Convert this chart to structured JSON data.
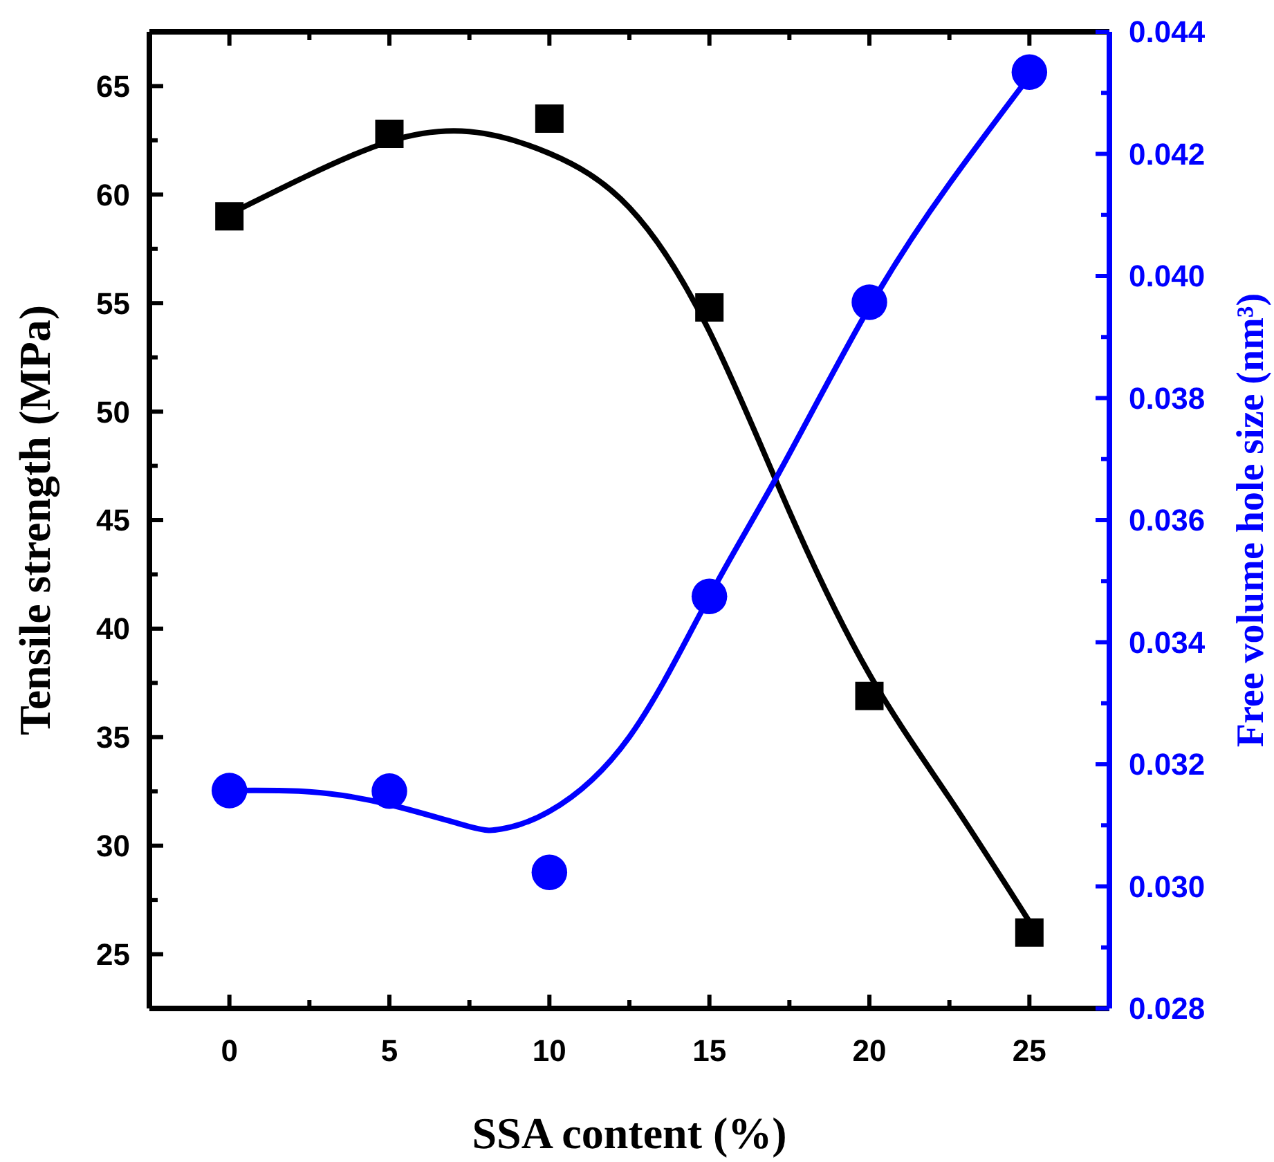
{
  "chart_data": {
    "type": "scatter",
    "xlabel": "SSA content (%)",
    "ylabel": "Tensile strength (MPa)",
    "y2label": "Free volume hole size (nm³)",
    "xlim": [
      -2.5,
      27.5
    ],
    "ylim": [
      22.5,
      67.5
    ],
    "y2lim": [
      0.028,
      0.044
    ],
    "xticks": [
      0,
      {
        "value": 2.5,
        "label": null
      },
      5,
      {
        "value": 7.5,
        "label": null
      },
      10,
      {
        "value": 12.5,
        "label": null
      },
      15,
      {
        "value": 17.5,
        "label": null
      },
      20,
      {
        "value": 22.5,
        "label": null
      },
      25
    ],
    "yticks": [
      25,
      {
        "value": 27.5,
        "label": null
      },
      30,
      {
        "value": 32.5,
        "label": null
      },
      35,
      {
        "value": 37.5,
        "label": null
      },
      40,
      {
        "value": 42.5,
        "label": null
      },
      45,
      {
        "value": 47.5,
        "label": null
      },
      50,
      {
        "value": 52.5,
        "label": null
      },
      55,
      {
        "value": 57.5,
        "label": null
      },
      60,
      {
        "value": 62.5,
        "label": null
      },
      65
    ],
    "y2ticks": [
      {
        "value": 0.028,
        "label": "0.028"
      },
      {
        "value": 0.029,
        "label": null
      },
      {
        "value": 0.03,
        "label": "0.030"
      },
      {
        "value": 0.031,
        "label": null
      },
      {
        "value": 0.032,
        "label": "0.032"
      },
      {
        "value": 0.033,
        "label": null
      },
      {
        "value": 0.034,
        "label": "0.034"
      },
      {
        "value": 0.035,
        "label": null
      },
      {
        "value": 0.036,
        "label": "0.036"
      },
      {
        "value": 0.037,
        "label": null
      },
      {
        "value": 0.038,
        "label": "0.038"
      },
      {
        "value": 0.039,
        "label": null
      },
      {
        "value": 0.04,
        "label": "0.040"
      },
      {
        "value": 0.041,
        "label": null
      },
      {
        "value": 0.042,
        "label": "0.042"
      },
      {
        "value": 0.043,
        "label": null
      },
      {
        "value": 0.044,
        "label": "0.044"
      }
    ],
    "grid": false,
    "series": [
      {
        "type": "line",
        "color": "#000000",
        "x": [
          0,
          2.34,
          5,
          7.5,
          10,
          12.5,
          15,
          17.5,
          20,
          22.5,
          25
        ],
        "values": [
          59.1,
          60.8,
          62.45,
          62.9,
          61.9,
          59.4,
          53.7,
          45.4,
          37.9,
          32.2,
          26.5
        ]
      },
      {
        "type": "line",
        "color": "#0000ff",
        "axis": "y2",
        "x": [
          0,
          2.5,
          5,
          7.5,
          8.5,
          10,
          12.5,
          15,
          17.17,
          20,
          22.5,
          25
        ],
        "values": [
          0.03157,
          0.03155,
          0.03134,
          0.03098,
          0.03094,
          0.03123,
          0.03245,
          0.03475,
          0.03677,
          0.03949,
          0.04151,
          0.04327
        ]
      },
      {
        "marker": "square",
        "color": "#000000",
        "x": [
          0,
          5,
          10,
          15,
          20,
          25
        ],
        "values": [
          59.0,
          62.8,
          63.5,
          54.8,
          36.9,
          26.0
        ]
      },
      {
        "marker": "circle",
        "color": "#0000ff",
        "axis": "y2",
        "x": [
          0,
          5,
          10,
          15,
          20,
          25
        ],
        "values": [
          0.03157,
          0.03156,
          0.03023,
          0.03475,
          0.03957,
          0.04334
        ]
      }
    ]
  }
}
